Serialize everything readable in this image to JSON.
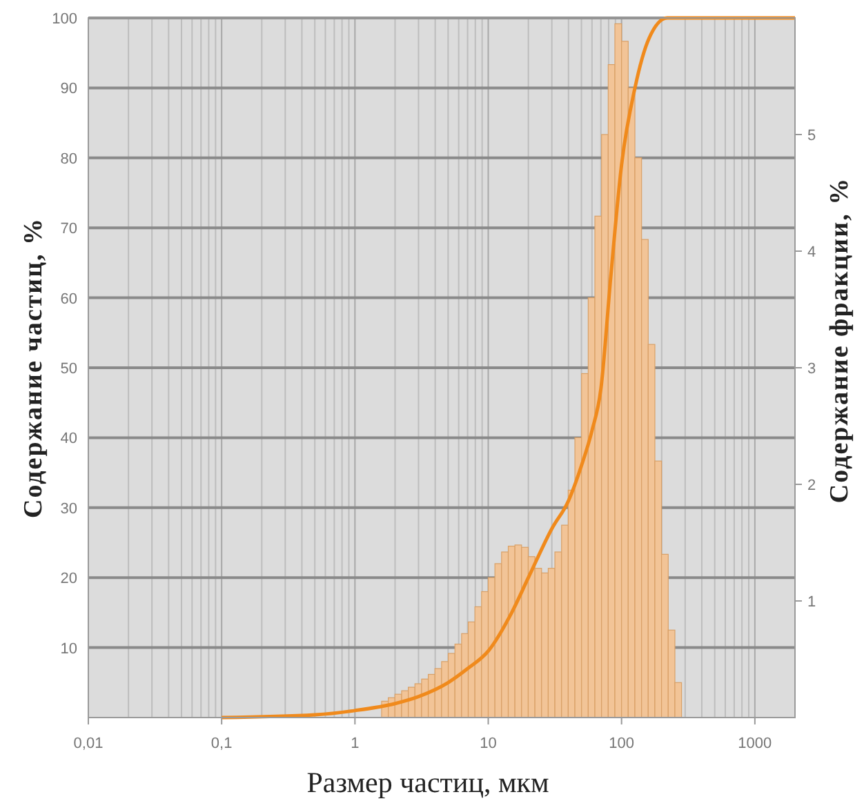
{
  "chart_data": {
    "type": "histogram",
    "xlabel": "Размер частиц, мкм",
    "ylabel": "Содержание частиц, %",
    "y2label": "Содержание фракции, %",
    "log": "x",
    "grid": true,
    "xlim": [
      0.01,
      2000
    ],
    "xticks": [
      {
        "value": 0.01,
        "label": "0,01"
      },
      {
        "value": 0.1,
        "label": "0,1"
      },
      1,
      10,
      100,
      1000
    ],
    "ylim": [
      0,
      100
    ],
    "yticks": [
      10,
      20,
      30,
      40,
      50,
      60,
      70,
      80,
      90,
      100
    ],
    "y2lim": [
      0,
      6
    ],
    "y2ticks": [
      1,
      2,
      3,
      4,
      5
    ],
    "bins": [
      1.585,
      1.778,
      1.995,
      2.239,
      2.512,
      2.818,
      3.162,
      3.548,
      3.981,
      4.467,
      5.012,
      5.623,
      6.31,
      7.079,
      7.943,
      8.913,
      10,
      11.22,
      12.59,
      14.13,
      15.85,
      17.78,
      19.95,
      22.39,
      25.12,
      28.18,
      31.62,
      35.48,
      39.81,
      44.67,
      50.12,
      56.23,
      63.1,
      70.79,
      79.43,
      89.13,
      100,
      112.2,
      125.9,
      141.3,
      158.5,
      177.8,
      199.5,
      223.9,
      251.2,
      281.8
    ],
    "series": [
      {
        "axis": "y2",
        "color": "#f2c497",
        "values": [
          0.14,
          0.17,
          0.2,
          0.23,
          0.26,
          0.29,
          0.33,
          0.37,
          0.42,
          0.48,
          0.55,
          0.63,
          0.72,
          0.82,
          0.95,
          1.08,
          1.2,
          1.32,
          1.42,
          1.47,
          1.48,
          1.46,
          1.38,
          1.28,
          1.24,
          1.28,
          1.42,
          1.65,
          1.95,
          2.4,
          2.95,
          3.6,
          4.3,
          5.0,
          5.6,
          5.95,
          5.8,
          5.4,
          4.8,
          4.1,
          3.2,
          2.2,
          1.4,
          0.75,
          0.3
        ]
      },
      {
        "type": "line",
        "axis": "y",
        "color": "#f08a1c",
        "x": [
          0.1,
          0.5,
          1,
          2,
          3,
          5,
          7,
          10,
          15,
          20,
          30,
          40,
          50,
          60,
          70,
          83,
          100,
          126,
          160,
          220,
          2000
        ],
        "values": [
          0,
          0.4,
          1,
          2,
          3,
          5,
          7,
          9.5,
          15,
          20,
          27,
          31,
          36,
          41,
          47,
          63,
          79,
          90,
          97,
          100,
          100
        ]
      }
    ]
  }
}
